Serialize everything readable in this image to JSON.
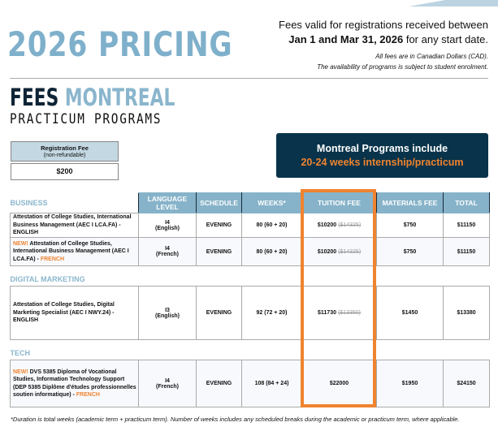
{
  "header": {
    "title": "2026 PRICING",
    "valid_line1": "Fees valid for registrations received between",
    "valid_dates": "Jan 1 and Mar 31, 2026",
    "valid_rest": " for any start date.",
    "note1": "All fees are in Canadian Dollars (CAD).",
    "note2": "The availability of programs is subject to student enrolment."
  },
  "subtitle": {
    "fees": "FEES",
    "city": "MONTREAL",
    "programs": "PRACTICUM PROGRAMS"
  },
  "registration": {
    "label": "Registration Fee",
    "sub": "(non-refundable)",
    "value": "$200"
  },
  "promo": {
    "line1": "Montreal Programs include",
    "line2": "20-24 weeks internship/practicum"
  },
  "table": {
    "headers": [
      "LANGUAGE LEVEL",
      "SCHEDULE",
      "WEEKS*",
      "TUITION FEE",
      "MATERIALS FEE",
      "TOTAL"
    ],
    "sections": [
      "BUSINESS",
      "DIGITAL MARKETING",
      "TECH"
    ],
    "rows": [
      {
        "new": "",
        "program": "Attestation of College Studies, International Business Management (AEC I LCA.FA) - ",
        "lang_tag": "ENGLISH",
        "level": "I4",
        "language": "(English)",
        "schedule": "EVENING",
        "weeks": "80 (60 + 20)",
        "tuition": "$10200",
        "old_tuition": "($14325)",
        "materials": "$750",
        "total": "$11150"
      },
      {
        "new": "NEW!",
        "program": " Attestation of College Studies, International Business Management (AEC I LCA.FA) - ",
        "lang_tag": "FRENCH",
        "level": "I4",
        "language": "(French)",
        "schedule": "EVENING",
        "weeks": "80 (60 + 20)",
        "tuition": "$10200",
        "old_tuition": "($14325)",
        "materials": "$750",
        "total": "$11150"
      },
      {
        "new": "",
        "program": "Attestation of College Studies, Digital Marketing Specialist (AEC I NWY.24) - ",
        "lang_tag": "ENGLISH",
        "level": "I3",
        "language": "(English)",
        "schedule": "EVENING",
        "weeks": "92 (72 + 20)",
        "tuition": "$11730",
        "old_tuition": "($13350)",
        "materials": "$1450",
        "total": "$13380"
      },
      {
        "new": "NEW!",
        "program": " DVS 5385 Diploma of Vocational Studies, Information Technology Support (DEP 5385 Diplôme d'études professionnelles soutien informatique) - ",
        "lang_tag": "FRENCH",
        "level": "I4",
        "language": "(French)",
        "schedule": "EVENING",
        "weeks": "108 (84 + 24)",
        "tuition": "$22000",
        "old_tuition": "",
        "materials": "$1950",
        "total": "$24150"
      }
    ]
  },
  "footnote": "*Duration is total weeks (academic term + practicum term). Number of weeks includes any scheduled breaks during the academic or practicum term, where applicable.",
  "colors": {
    "accent_blue": "#86b3c9",
    "orange": "#f0832f",
    "navy": "#08334a"
  }
}
